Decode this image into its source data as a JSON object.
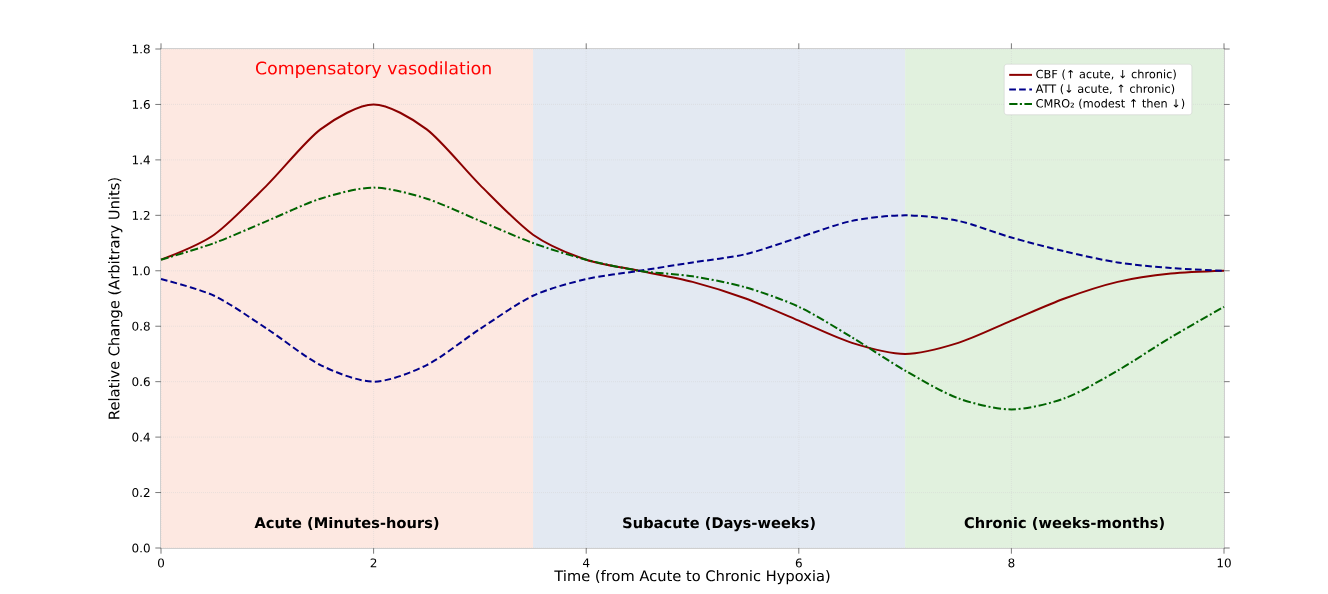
{
  "chart_data": {
    "type": "line",
    "xlabel": "Time (from Acute to Chronic Hypoxia)",
    "ylabel": "Relative Change (Arbitrary Units)",
    "x": [
      0,
      0.5,
      1,
      1.5,
      2,
      2.5,
      3,
      3.5,
      4,
      4.5,
      5,
      5.5,
      6,
      6.5,
      7,
      7.5,
      8,
      8.5,
      9,
      9.5,
      10
    ],
    "series": [
      {
        "name": "CBF (↑ acute, ↓ chronic)",
        "color": "#8b0000",
        "line_style": "solid",
        "values": [
          1.04,
          1.13,
          1.31,
          1.51,
          1.6,
          1.51,
          1.31,
          1.13,
          1.04,
          1.0,
          0.96,
          0.9,
          0.82,
          0.74,
          0.7,
          0.74,
          0.82,
          0.9,
          0.96,
          0.99,
          1.0
        ]
      },
      {
        "name": "ATT (↓ acute, ↑ chronic)",
        "color": "#00008b",
        "line_style": "dashed",
        "values": [
          0.97,
          0.91,
          0.79,
          0.66,
          0.6,
          0.66,
          0.79,
          0.91,
          0.97,
          1.0,
          1.03,
          1.06,
          1.12,
          1.18,
          1.2,
          1.18,
          1.12,
          1.07,
          1.03,
          1.01,
          1.0
        ]
      },
      {
        "name": "CMRO₂ (modest ↑ then ↓)",
        "color": "#006400",
        "line_style": "dashdot",
        "values": [
          1.04,
          1.1,
          1.18,
          1.26,
          1.3,
          1.26,
          1.18,
          1.1,
          1.04,
          1.0,
          0.98,
          0.94,
          0.87,
          0.76,
          0.64,
          0.54,
          0.5,
          0.54,
          0.64,
          0.76,
          0.87
        ]
      }
    ],
    "xlim": [
      0,
      10
    ],
    "ylim": [
      0,
      1.8
    ],
    "xticks": [
      0,
      2,
      4,
      6,
      8,
      10
    ],
    "yticks": [
      {
        "value": 0,
        "label": "0.0"
      },
      {
        "value": 0.2,
        "label": "0.2"
      },
      {
        "value": 0.4,
        "label": "0.4"
      },
      {
        "value": 0.6,
        "label": "0.6"
      },
      {
        "value": 0.8,
        "label": "0.8"
      },
      {
        "value": 1.0,
        "label": "1.0"
      },
      {
        "value": 1.2,
        "label": "1.2"
      },
      {
        "value": 1.4,
        "label": "1.4"
      },
      {
        "value": 1.6,
        "label": "1.6"
      },
      {
        "value": 1.8,
        "label": "1.8"
      }
    ],
    "bands": [
      {
        "axis": "x",
        "from": 0,
        "to": 3.5,
        "label": "Acute (Minutes-hours)",
        "color": "#fde8e1"
      },
      {
        "axis": "x",
        "from": 3.5,
        "to": 7,
        "label": "Subacute (Days-weeks)",
        "color": "#e3e9f2"
      },
      {
        "axis": "x",
        "from": 7,
        "to": 10,
        "label": "Chronic (weeks-months)",
        "color": "#e1f1de"
      }
    ],
    "annotations": [
      "Compensatory vasodilation"
    ],
    "grid": true,
    "legend": "top right"
  }
}
